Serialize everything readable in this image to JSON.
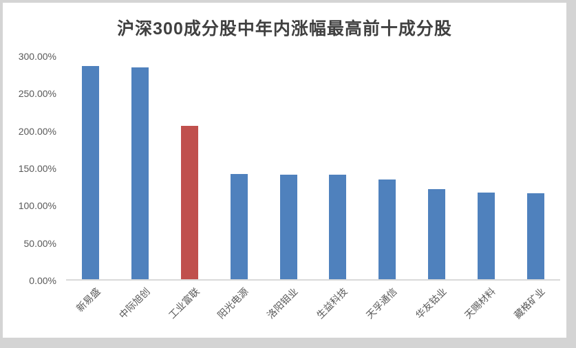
{
  "chart_data": {
    "type": "bar",
    "title": "沪深300成分股中年内涨幅最高前十成分股",
    "categories": [
      "新易盛",
      "中际旭创",
      "工业富联",
      "阳光电源",
      "洛阳钼业",
      "生益科技",
      "天孚通信",
      "华友钴业",
      "天赐材料",
      "藏格矿业"
    ],
    "values": [
      287.1,
      285.3,
      207.1,
      142.9,
      141.6,
      141.4,
      135.3,
      122.4,
      117.5,
      116.8
    ],
    "unit": "%",
    "xlabel": "",
    "ylabel": "",
    "ylim": [
      0,
      300
    ],
    "y_tick_values": [
      0,
      50,
      100,
      150,
      200,
      250,
      300
    ],
    "y_tick_labels": [
      "0.00%",
      "50.00%",
      "100.00%",
      "150.00%",
      "200.00%",
      "250.00%",
      "300.00%"
    ],
    "grid": false,
    "legend": false,
    "bar_colors": {
      "default": "#4F81BD",
      "highlight": "#C0504D",
      "highlight_index": 2
    },
    "colors": {
      "background": "#D4D4D4",
      "plot_background": "#FFFFFF",
      "axis_line": "#D9D9D9",
      "tick_text": "#595959",
      "title_text": "#404040"
    }
  }
}
